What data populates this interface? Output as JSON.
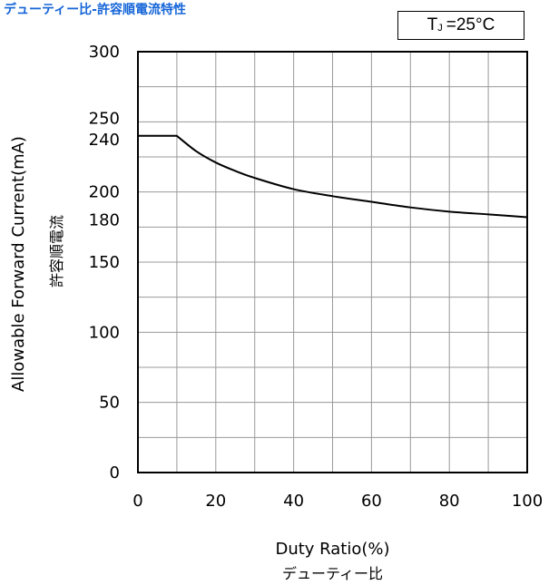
{
  "heading": "デューティー比-許容順電流特性",
  "condition": {
    "symbol": "T",
    "subscript": "J",
    "value": "=25°C"
  },
  "chart_data": {
    "type": "line",
    "xlabel": "Duty Ratio(%)",
    "xlabel_jp": "デューティー比",
    "ylabel": "Allowable Forward Current(mA)",
    "ylabel_jp": "許容順電流",
    "xlim": [
      0,
      100
    ],
    "ylim": [
      0,
      300
    ],
    "x_ticks": [
      0,
      20,
      40,
      60,
      80,
      100
    ],
    "x_tick_labels": [
      "0",
      "20",
      "40",
      "60",
      "80",
      "100"
    ],
    "y_ticks": [
      0,
      50,
      100,
      150,
      180,
      200,
      240,
      250,
      300
    ],
    "y_tick_labels": [
      "0",
      "50",
      "100",
      "150",
      "180",
      "200",
      "240",
      "250",
      "300"
    ],
    "grid": true,
    "series": [
      {
        "x": [
          0,
          10,
          15,
          20,
          25,
          30,
          40,
          50,
          60,
          70,
          80,
          90,
          100
        ],
        "y": [
          240,
          240,
          229,
          221,
          215,
          210,
          202,
          197,
          193,
          189,
          186,
          184,
          182
        ]
      }
    ]
  }
}
